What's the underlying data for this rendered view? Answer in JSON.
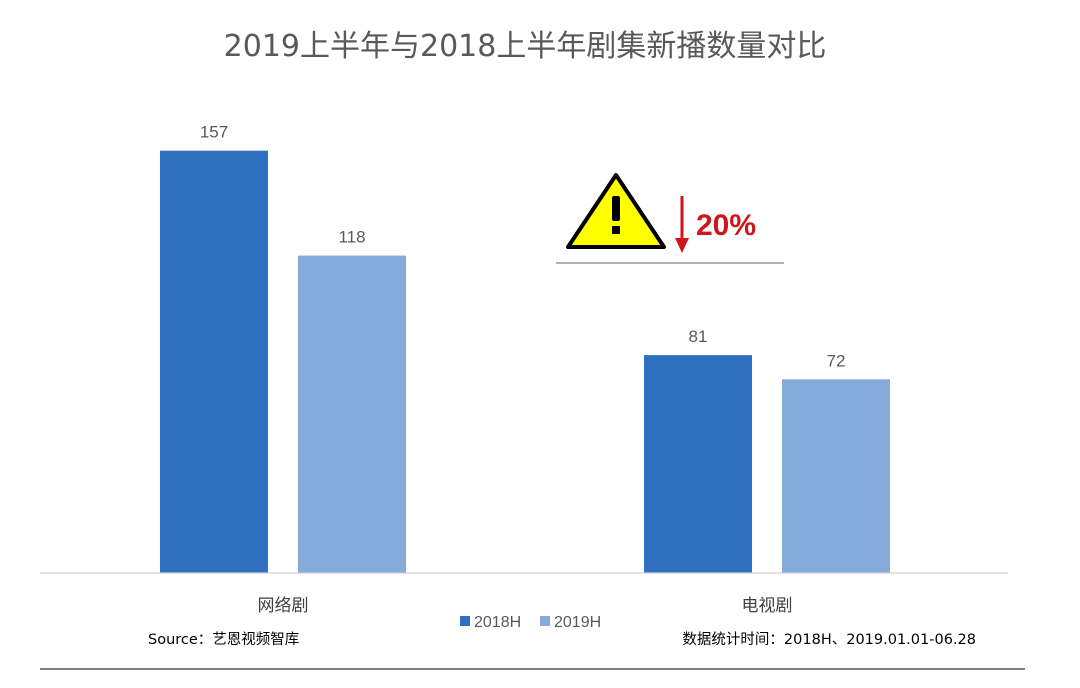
{
  "chart_data": {
    "type": "bar",
    "title": "2019上半年与2018上半年剧集新播数量对比",
    "categories": [
      "网络剧",
      "电视剧"
    ],
    "series": [
      {
        "name": "2018H",
        "values": [
          157,
          81
        ],
        "color": "#2e6fc0"
      },
      {
        "name": "2019H",
        "values": [
          118,
          72
        ],
        "color": "#86aadb"
      }
    ],
    "ylim": [
      0,
      160
    ],
    "grid": false,
    "legend": "bottom-center",
    "annotation": {
      "text": "20%",
      "icon": "warning-triangle-icon",
      "arrow": "arrow-down-icon",
      "color": "#d0161b"
    }
  },
  "footer": {
    "source": "Source：艺恩视频智库",
    "period": "数据统计时间：2018H、2019.01.01-06.28"
  }
}
